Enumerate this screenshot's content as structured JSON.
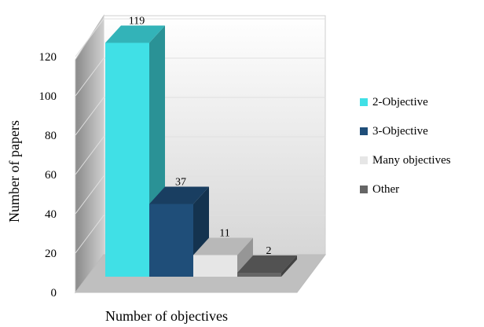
{
  "chart_data": {
    "type": "bar",
    "categories": [
      "2-Objective",
      "3-Objective",
      "Many objectives",
      "Other"
    ],
    "values": [
      119,
      37,
      11,
      2
    ],
    "ylabel": "Number of papers",
    "xlabel": "Number of objectives",
    "ylim": [
      0,
      120
    ],
    "yticks": [
      "0",
      "20",
      "40",
      "60",
      "80",
      "100",
      "120"
    ],
    "data_labels": [
      "119",
      "37",
      "11",
      "2"
    ],
    "grid": true,
    "legend_position": "right",
    "series": [
      {
        "name": "2-Objective",
        "color": "#40E0E6",
        "value": 119
      },
      {
        "name": "3-Objective",
        "color": "#1F4E79",
        "value": 37
      },
      {
        "name": "Many objectives",
        "color": "#E6E6E6",
        "value": 11
      },
      {
        "name": "Other",
        "color": "#666666",
        "value": 2
      }
    ]
  }
}
